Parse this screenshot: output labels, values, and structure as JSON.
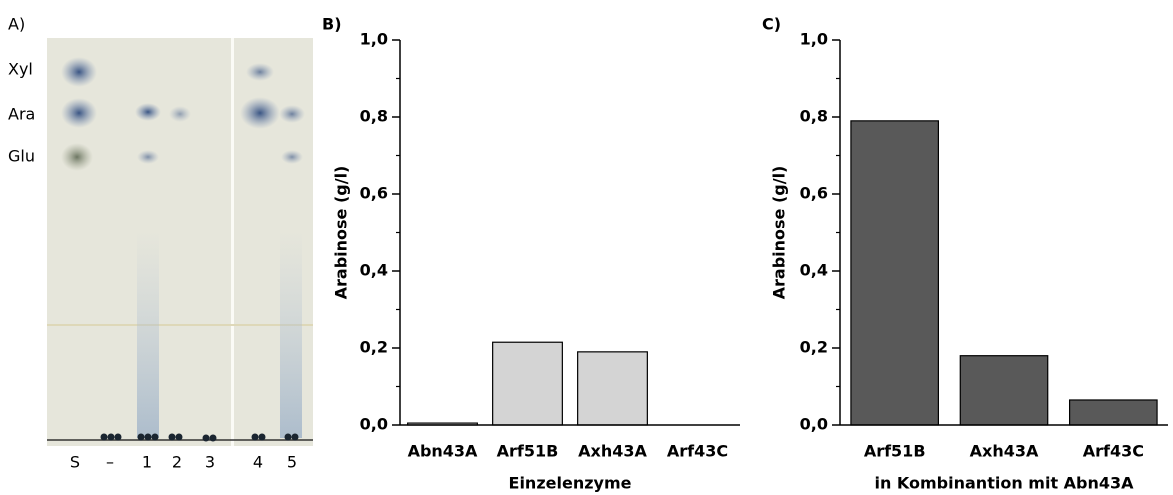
{
  "panel_a": {
    "label": "A)",
    "markers": [
      "Xyl",
      "Ara",
      "Glu"
    ],
    "lanes": [
      "S",
      "–",
      "1",
      "2",
      "3",
      "4",
      "5"
    ]
  },
  "chart_data": [
    {
      "type": "bar",
      "panel_label": "B)",
      "ylabel": "Arabinose (g/l)",
      "xlabel": "Einzelenzyme",
      "categories": [
        "Abn43A",
        "Arf51B",
        "Axh43A",
        "Arf43C"
      ],
      "values": [
        0.005,
        0.215,
        0.19,
        0
      ],
      "color": "#d4d4d4",
      "ylim": [
        0,
        1
      ],
      "yticks": [
        {
          "value": 0,
          "label": "0,0"
        },
        {
          "value": 0.2,
          "label": "0,2"
        },
        {
          "value": 0.4,
          "label": "0,4"
        },
        {
          "value": 0.6,
          "label": "0,6"
        },
        {
          "value": 0.8,
          "label": "0,8"
        },
        {
          "value": 1,
          "label": "1,0"
        }
      ],
      "minor_yticks": [
        0.1,
        0.3,
        0.5,
        0.7,
        0.9
      ]
    },
    {
      "type": "bar",
      "panel_label": "C)",
      "ylabel": "Arabinose (g/l)",
      "xlabel": "in Kombinantion mit Abn43A",
      "categories": [
        "Arf51B",
        "Axh43A",
        "Arf43C"
      ],
      "values": [
        0.79,
        0.18,
        0.065
      ],
      "color": "#595959",
      "ylim": [
        0,
        1
      ],
      "yticks": [
        {
          "value": 0,
          "label": "0,0"
        },
        {
          "value": 0.2,
          "label": "0,2"
        },
        {
          "value": 0.4,
          "label": "0,4"
        },
        {
          "value": 0.6,
          "label": "0,6"
        },
        {
          "value": 0.8,
          "label": "0,8"
        },
        {
          "value": 1,
          "label": "1,0"
        }
      ],
      "minor_yticks": [
        0.1,
        0.3,
        0.5,
        0.7,
        0.9
      ]
    }
  ]
}
